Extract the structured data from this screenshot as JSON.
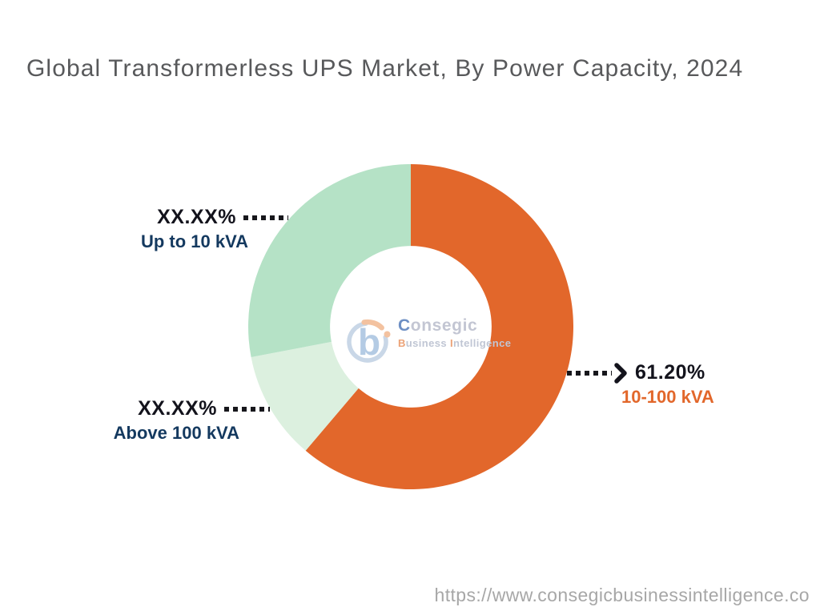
{
  "title": "Global Transformerless UPS Market, By Power Capacity, 2024",
  "footer": {
    "url": "https://www.consegicbusinessintelligence.co"
  },
  "logo": {
    "brand_first_letter": "C",
    "brand_rest": "onsegic",
    "sub_first_letter": "B",
    "sub_part1": "usiness ",
    "sub_second_letter": "I",
    "sub_part2": "ntelligence"
  },
  "colors": {
    "segment_orange": "#E2672B",
    "segment_pale_green": "#DCF0DF",
    "segment_green": "#B5E2C6",
    "value_text": "#13131C",
    "category_navy": "#14395F",
    "category_orange": "#E2672B",
    "title_gray": "#58595B",
    "url_gray": "#A7A7A7",
    "leader_dots": "#17171C"
  },
  "chart_data": {
    "type": "pie",
    "subtype": "donut",
    "title": "Global Transformerless UPS Market, By Power Capacity, 2024",
    "start_angle_deg": 0,
    "direction": "clockwise",
    "inner_radius_ratio": 0.497,
    "legend": "none",
    "values_note": "XX.XX% segments are masked in the source image; value_pct for them is estimated from arc angles",
    "segments": [
      {
        "label": "10-100 kVA",
        "displayed_value": "61.20%",
        "value_pct": 61.2,
        "color": "#E2672B",
        "label_color": "#E2672B",
        "masked": false
      },
      {
        "label": "Above 100 kVA",
        "displayed_value": "XX.XX%",
        "value_pct": 10.8,
        "color": "#DCF0DF",
        "label_color": "#14395F",
        "masked": true
      },
      {
        "label": "Up to 10 kVA",
        "displayed_value": "XX.XX%",
        "value_pct": 28.0,
        "color": "#B5E2C6",
        "label_color": "#14395F",
        "masked": true
      }
    ]
  }
}
